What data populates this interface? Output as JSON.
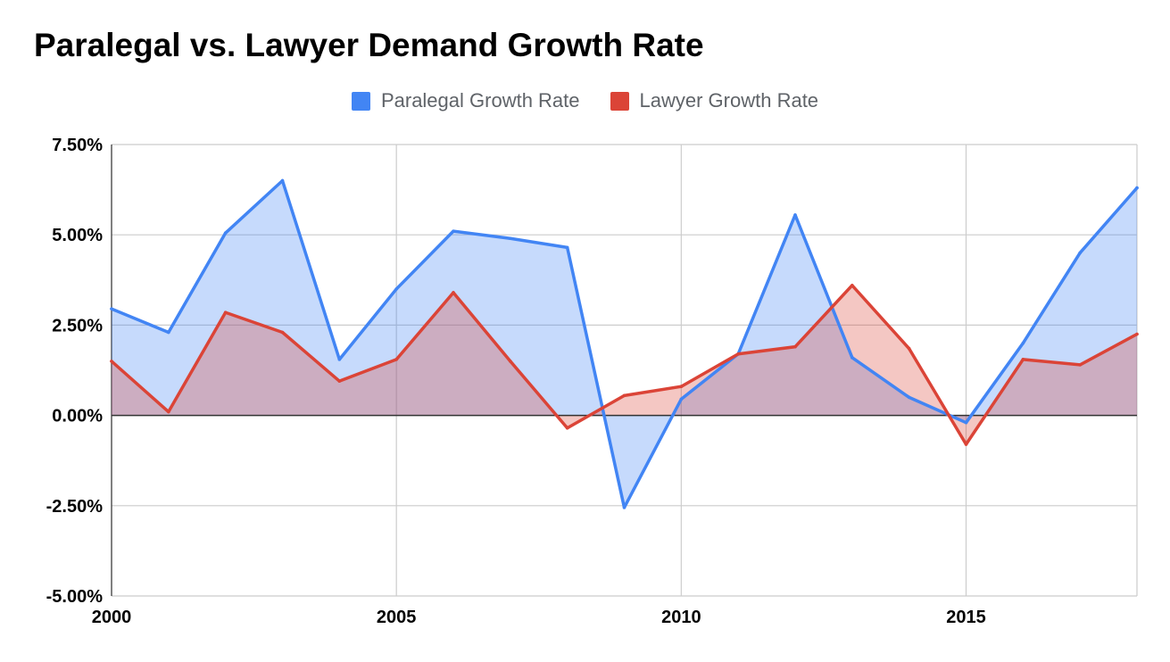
{
  "chart_data": {
    "type": "area",
    "title": "Paralegal vs. Lawyer Demand Growth Rate",
    "xlabel": "",
    "ylabel": "",
    "x": [
      2000,
      2001,
      2002,
      2003,
      2004,
      2005,
      2006,
      2007,
      2008,
      2009,
      2010,
      2011,
      2012,
      2013,
      2014,
      2015,
      2016,
      2017,
      2018
    ],
    "xlim": [
      2000,
      2018
    ],
    "ylim": [
      -5.0,
      7.5
    ],
    "x_ticks": [
      2000,
      2005,
      2010,
      2015
    ],
    "x_tick_labels": [
      "2000",
      "2005",
      "2010",
      "2015"
    ],
    "y_ticks": [
      7.5,
      5.0,
      2.5,
      0.0,
      -2.5,
      -5.0
    ],
    "y_tick_labels": [
      "7.50%",
      "5.00%",
      "2.50%",
      "0.00%",
      "-2.50%",
      "-5.00%"
    ],
    "grid": true,
    "legend_position": "top",
    "series": [
      {
        "name": "Paralegal Growth Rate",
        "color": "#4285f4",
        "fill": "#c6d9f8",
        "values": [
          2.95,
          2.3,
          5.05,
          6.5,
          1.55,
          3.5,
          5.1,
          4.9,
          4.65,
          -2.55,
          0.45,
          1.7,
          5.55,
          1.6,
          0.5,
          -0.2,
          2.0,
          4.5,
          6.3
        ]
      },
      {
        "name": "Lawyer Growth Rate",
        "color": "#db4437",
        "fill": "#f4c3be",
        "values": [
          1.5,
          0.1,
          2.85,
          2.3,
          0.95,
          1.55,
          3.4,
          1.5,
          -0.35,
          0.55,
          0.8,
          1.7,
          1.9,
          3.6,
          1.85,
          -0.8,
          1.55,
          1.4,
          2.25
        ]
      }
    ]
  }
}
